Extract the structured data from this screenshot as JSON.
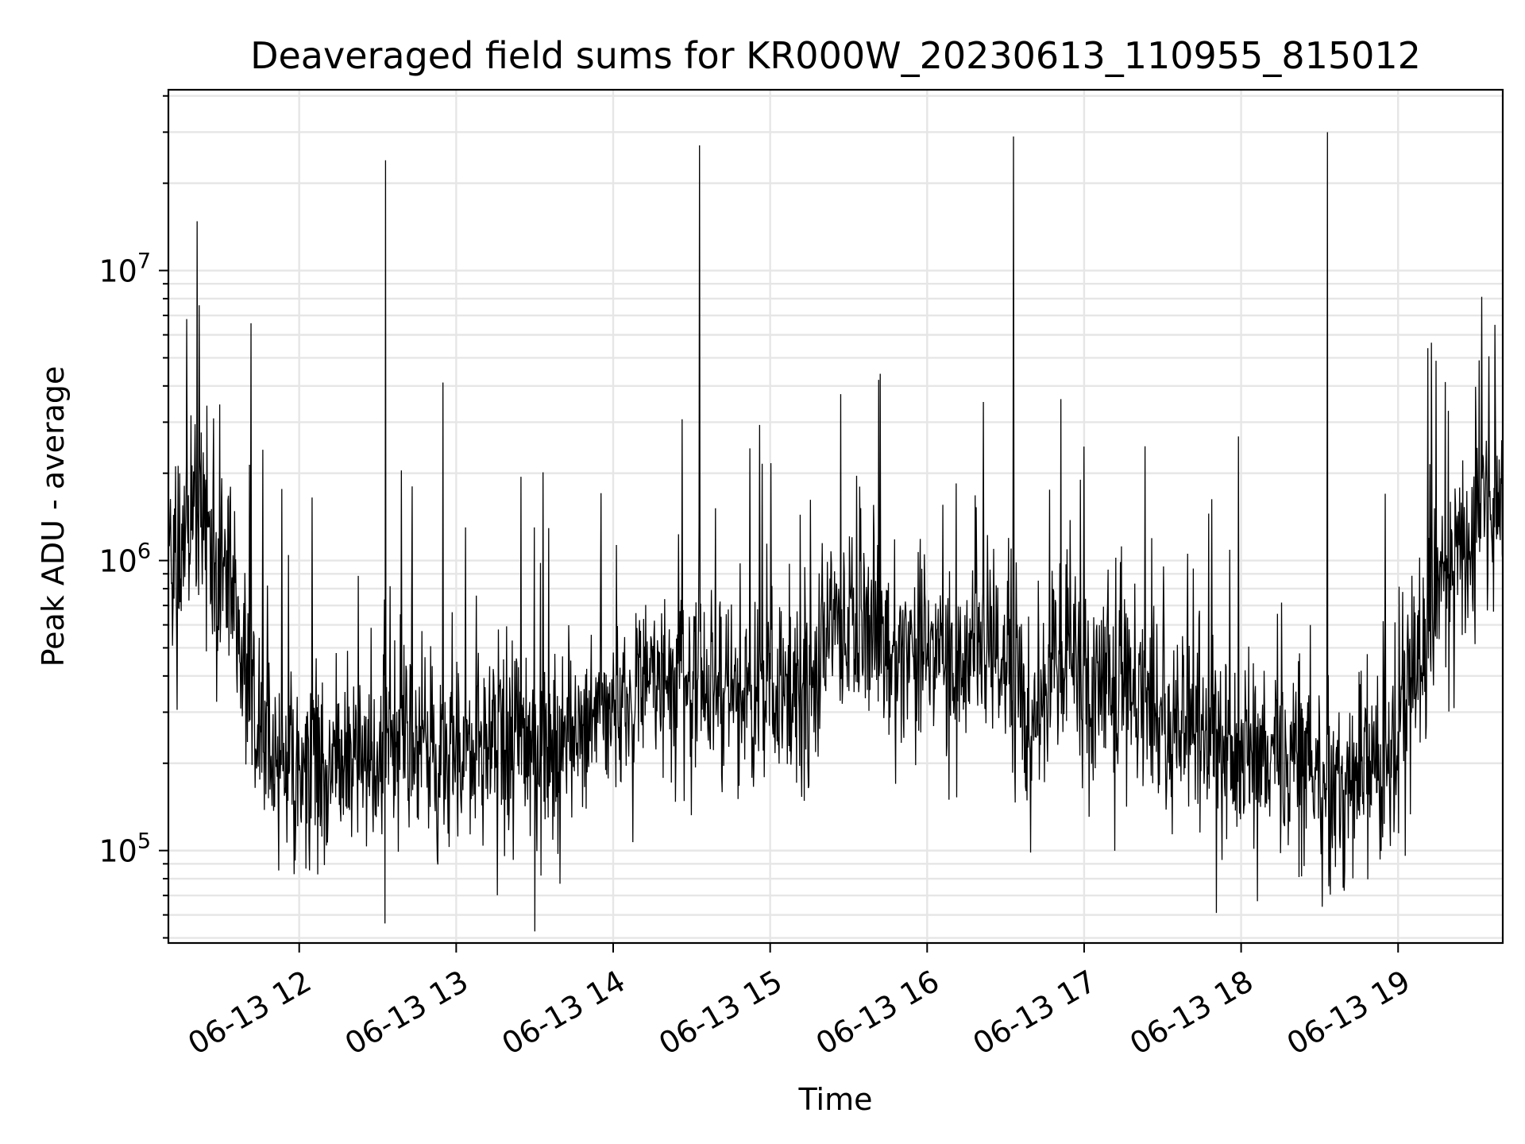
{
  "chart_data": {
    "type": "line",
    "title": "Deaveraged field sums for KR000W_20230613_110955_815012",
    "xlabel": "Time",
    "ylabel": "Peak ADU - average",
    "yscale": "log",
    "ylim": [
      48000,
      42000000
    ],
    "xlim": [
      "2023-06-13 11:10",
      "2023-06-13 19:40"
    ],
    "grid": true,
    "xticks": [
      {
        "value": "2023-06-13 12:00",
        "label": "06-13 12"
      },
      {
        "value": "2023-06-13 13:00",
        "label": "06-13 13"
      },
      {
        "value": "2023-06-13 14:00",
        "label": "06-13 14"
      },
      {
        "value": "2023-06-13 15:00",
        "label": "06-13 15"
      },
      {
        "value": "2023-06-13 16:00",
        "label": "06-13 16"
      },
      {
        "value": "2023-06-13 17:00",
        "label": "06-13 17"
      },
      {
        "value": "2023-06-13 18:00",
        "label": "06-13 18"
      },
      {
        "value": "2023-06-13 19:00",
        "label": "06-13 19"
      }
    ],
    "yticks": [
      {
        "value": 100000,
        "base": "10",
        "exp": "5"
      },
      {
        "value": 1000000,
        "base": "10",
        "exp": "6"
      },
      {
        "value": 10000000,
        "base": "10",
        "exp": "7"
      }
    ],
    "series": [
      {
        "color": "#000000",
        "x": [
          "2023-06-13 11:10",
          "2023-06-13 11:15",
          "2023-06-13 11:20",
          "2023-06-13 11:25",
          "2023-06-13 11:30",
          "2023-06-13 11:35",
          "2023-06-13 11:40",
          "2023-06-13 11:45",
          "2023-06-13 11:50",
          "2023-06-13 11:55",
          "2023-06-13 12:00",
          "2023-06-13 12:10",
          "2023-06-13 12:20",
          "2023-06-13 12:30",
          "2023-06-13 12:40",
          "2023-06-13 12:50",
          "2023-06-13 13:00",
          "2023-06-13 13:10",
          "2023-06-13 13:20",
          "2023-06-13 13:30",
          "2023-06-13 13:40",
          "2023-06-13 13:50",
          "2023-06-13 14:00",
          "2023-06-13 14:10",
          "2023-06-13 14:20",
          "2023-06-13 14:30",
          "2023-06-13 14:40",
          "2023-06-13 14:50",
          "2023-06-13 15:00",
          "2023-06-13 15:10",
          "2023-06-13 15:20",
          "2023-06-13 15:30",
          "2023-06-13 15:40",
          "2023-06-13 15:50",
          "2023-06-13 16:00",
          "2023-06-13 16:10",
          "2023-06-13 16:20",
          "2023-06-13 16:30",
          "2023-06-13 16:40",
          "2023-06-13 16:50",
          "2023-06-13 17:00",
          "2023-06-13 17:10",
          "2023-06-13 17:20",
          "2023-06-13 17:30",
          "2023-06-13 17:40",
          "2023-06-13 17:50",
          "2023-06-13 18:00",
          "2023-06-13 18:10",
          "2023-06-13 18:20",
          "2023-06-13 18:30",
          "2023-06-13 18:40",
          "2023-06-13 18:50",
          "2023-06-13 19:00",
          "2023-06-13 19:10",
          "2023-06-13 19:20",
          "2023-06-13 19:30",
          "2023-06-13 19:40"
        ],
        "y": [
          900000,
          1200000,
          2000000,
          1100000,
          900000,
          700000,
          400000,
          260000,
          220000,
          190000,
          180000,
          200000,
          190000,
          200000,
          250000,
          230000,
          210000,
          230000,
          250000,
          240000,
          230000,
          280000,
          320000,
          350000,
          400000,
          400000,
          380000,
          340000,
          360000,
          380000,
          450000,
          650000,
          600000,
          480000,
          520000,
          450000,
          500000,
          500000,
          260000,
          480000,
          400000,
          360000,
          330000,
          300000,
          260000,
          230000,
          220000,
          210000,
          200000,
          190000,
          160000,
          200000,
          240000,
          500000,
          900000,
          1300000,
          1700000
        ]
      }
    ],
    "spikes": [
      {
        "x": "2023-06-13 12:33",
        "y": 24000000
      },
      {
        "x": "2023-06-13 14:33",
        "y": 27000000
      },
      {
        "x": "2023-06-13 16:33",
        "y": 29000000
      },
      {
        "x": "2023-06-13 18:33",
        "y": 30000000
      },
      {
        "x": "2023-06-13 18:31",
        "y": 64000
      },
      {
        "x": "2023-06-13 11:17",
        "y": 6800000
      },
      {
        "x": "2023-06-13 19:37",
        "y": 6500000
      }
    ]
  }
}
